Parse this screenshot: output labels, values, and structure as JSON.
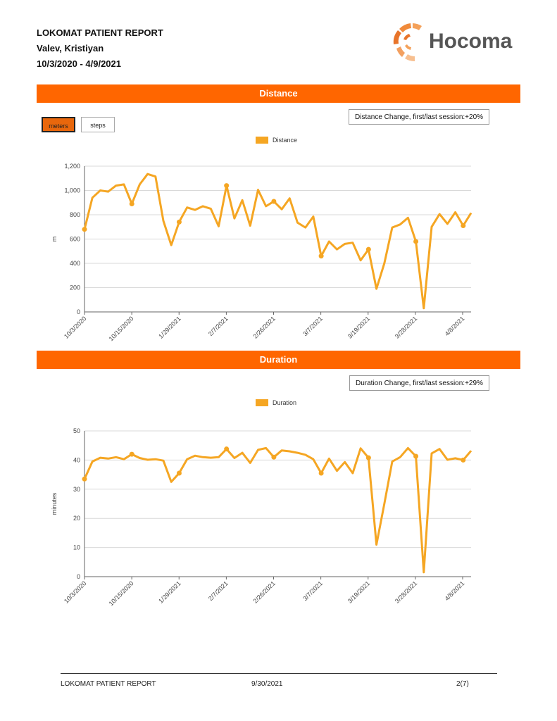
{
  "report": {
    "title": "LOKOMAT PATIENT REPORT",
    "patient": "Valev, Kristiyan",
    "date_range": "10/3/2020 - 4/9/2021"
  },
  "logo": {
    "text": "Hocoma"
  },
  "distance_section": {
    "title": "Distance",
    "toggle_meters": "meters",
    "toggle_steps": "steps",
    "change_text": "Distance Change, first/last session:+20%",
    "legend": "Distance",
    "ylabel": "m"
  },
  "duration_section": {
    "title": "Duration",
    "change_text": "Duration Change, first/last session:+29%",
    "legend": "Duration",
    "ylabel": "minutes"
  },
  "footer": {
    "left": "LOKOMAT PATIENT REPORT",
    "center": "9/30/2021",
    "right": "2(7)"
  },
  "colors": {
    "accent": "#ff6600",
    "series": "#f5a623"
  },
  "chart_data": [
    {
      "type": "line",
      "title": "Distance",
      "ylabel": "m",
      "ylim": [
        0,
        1200
      ],
      "yticks": [
        "0",
        "200",
        "400",
        "600",
        "800",
        "1,000",
        "1,200"
      ],
      "xticks": [
        "10/3/2020",
        "10/15/2020",
        "1/29/2021",
        "2/7/2021",
        "2/26/2021",
        "3/7/2021",
        "3/19/2021",
        "3/28/2021",
        "4/8/2021"
      ],
      "grid": true,
      "series": [
        {
          "name": "Distance",
          "values": [
            680,
            940,
            1000,
            990,
            1040,
            1050,
            890,
            1050,
            1135,
            1115,
            750,
            550,
            740,
            860,
            840,
            870,
            850,
            705,
            1040,
            770,
            920,
            710,
            1005,
            870,
            910,
            845,
            935,
            735,
            695,
            785,
            460,
            580,
            515,
            560,
            570,
            425,
            515,
            190,
            400,
            695,
            720,
            775,
            580,
            30,
            700,
            805,
            725,
            820,
            710,
            815
          ],
          "markers": [
            0,
            6,
            12,
            18,
            24,
            30,
            36,
            42,
            48
          ]
        }
      ]
    },
    {
      "type": "line",
      "title": "Duration",
      "ylabel": "minutes",
      "ylim": [
        0,
        50
      ],
      "yticks": [
        "0",
        "10",
        "20",
        "30",
        "40",
        "50"
      ],
      "xticks": [
        "10/3/2020",
        "10/15/2020",
        "1/29/2021",
        "2/7/2021",
        "2/26/2021",
        "3/7/2021",
        "3/19/2021",
        "3/28/2021",
        "4/8/2021"
      ],
      "grid": true,
      "series": [
        {
          "name": "Duration",
          "values": [
            33.5,
            39.5,
            40.8,
            40.5,
            41,
            40.3,
            42,
            40.7,
            40.1,
            40.3,
            39.8,
            32.5,
            35.5,
            40.3,
            41.5,
            41,
            40.8,
            41,
            43.8,
            40.7,
            42.5,
            39,
            43.5,
            44.1,
            41,
            43.3,
            43,
            42.5,
            41.8,
            40.3,
            35.5,
            40.5,
            36.3,
            39.3,
            35.5,
            44,
            40.8,
            11,
            25,
            39.5,
            41,
            44.1,
            41.3,
            1.5,
            42.3,
            43.8,
            40.1,
            40.6,
            40,
            43.2
          ],
          "markers": [
            0,
            6,
            12,
            18,
            24,
            30,
            36,
            42,
            48
          ]
        }
      ]
    }
  ]
}
